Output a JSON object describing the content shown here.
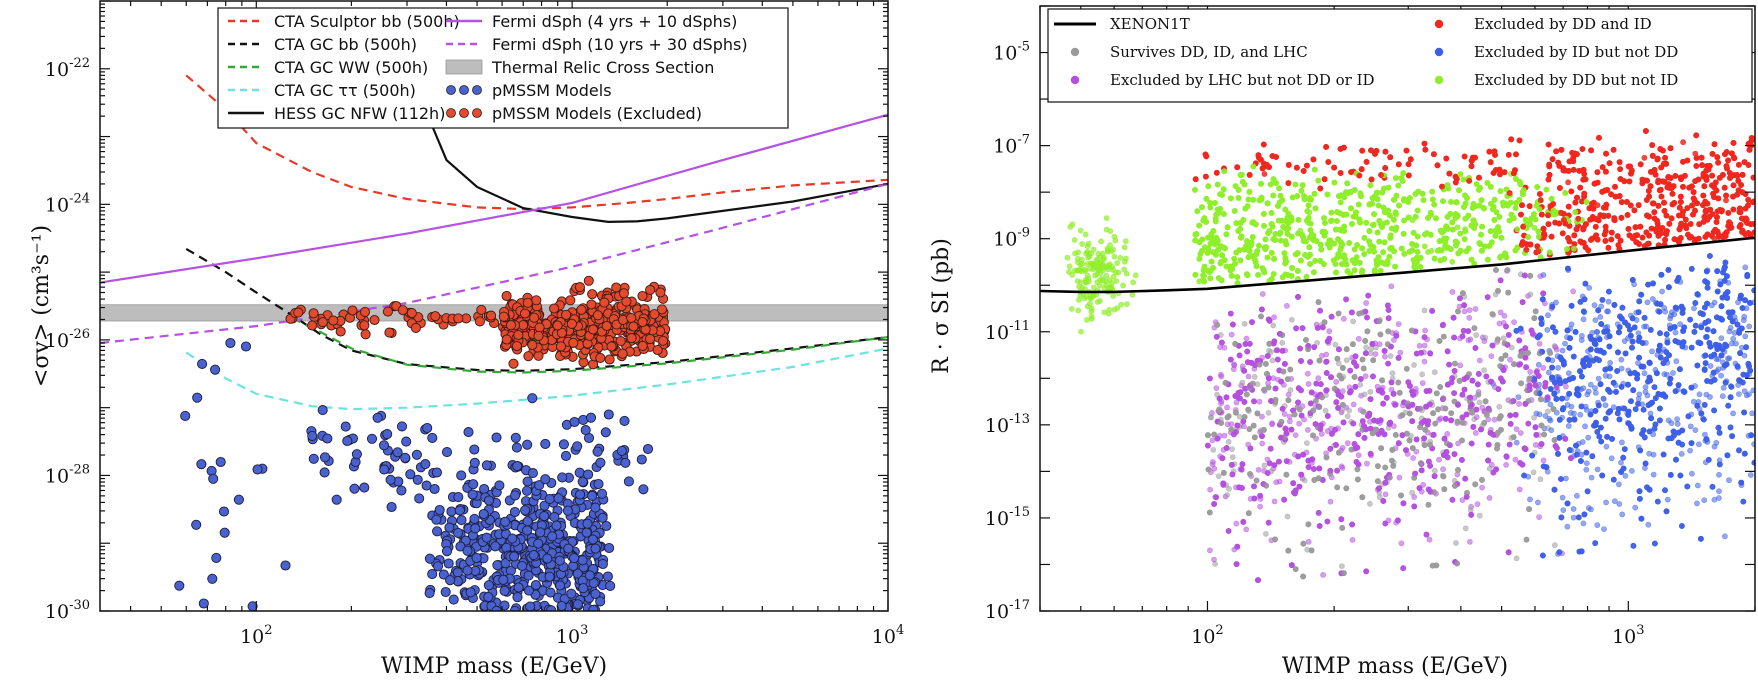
{
  "chart_data": [
    {
      "id": "left",
      "type": "scatter",
      "xscale": "log",
      "yscale": "log",
      "xlim": [
        32,
        10000
      ],
      "ylim": [
        1e-30,
        1e-21
      ],
      "xlabel": "WIMP mass (E/GeV)",
      "ylabel": "<σv> (cm³s⁻¹)",
      "xticks": [
        {
          "v": 100,
          "b": "10",
          "e": "2"
        },
        {
          "v": 1000,
          "b": "10",
          "e": "3"
        },
        {
          "v": 10000,
          "b": "10",
          "e": "4"
        }
      ],
      "yticks": [
        {
          "v": 1e-22,
          "b": "10",
          "e": "-22"
        },
        {
          "v": 1e-24,
          "b": "10",
          "e": "-24"
        },
        {
          "v": 1e-26,
          "b": "10",
          "e": "-26"
        },
        {
          "v": 1e-28,
          "b": "10",
          "e": "-28"
        },
        {
          "v": 1e-30,
          "b": "10",
          "e": "-30"
        }
      ],
      "legend_position": "top-right",
      "band": {
        "name": "Thermal Relic Cross Section",
        "y_range": [
          1.9e-26,
          3.3e-26
        ],
        "color": "#bdbdbd"
      },
      "series": [
        {
          "name": "CTA Sculptor bb (500h)",
          "style": "dashed",
          "color": "#e8382a",
          "x": [
            60,
            80,
            100,
            150,
            200,
            300,
            500,
            700,
            1000,
            1500,
            2000,
            3000,
            5000,
            10000
          ],
          "y": [
            8e-23,
            2.5e-23,
            8e-24,
            3e-24,
            1.8e-24,
            1.2e-24,
            9e-25,
            8.5e-25,
            9e-25,
            1.05e-24,
            1.2e-24,
            1.5e-24,
            1.9e-24,
            2.3e-24
          ]
        },
        {
          "name": "CTA GC bb (500h)",
          "style": "dashed",
          "color": "#111111",
          "x": [
            60,
            80,
            100,
            130,
            160,
            200,
            300,
            500,
            700,
            1000,
            2000,
            5000,
            10000
          ],
          "y": [
            2.2e-25,
            1e-25,
            5e-26,
            2.3e-26,
            1.2e-26,
            7e-27,
            4.4e-27,
            3.6e-27,
            3.5e-27,
            3.7e-27,
            4.7e-27,
            7.5e-27,
            1.1e-26
          ]
        },
        {
          "name": "CTA GC WW (500h)",
          "style": "dashed",
          "color": "#36a83a",
          "x": [
            130,
            160,
            200,
            300,
            500,
            700,
            1000,
            2000,
            5000,
            10000
          ],
          "y": [
            2.1e-26,
            1.3e-26,
            7.5e-27,
            4.3e-27,
            3.4e-27,
            3.3e-27,
            3.5e-27,
            4.5e-27,
            7.2e-27,
            1.1e-26
          ]
        },
        {
          "name": "CTA GC ττ (500h)",
          "style": "dashed",
          "color": "#6ae4de",
          "x": [
            60,
            80,
            100,
            150,
            200,
            300,
            500,
            700,
            1000,
            2000,
            5000,
            10000
          ],
          "y": [
            6.5e-27,
            2.7e-27,
            1.6e-27,
            1.05e-27,
            9.5e-28,
            1e-27,
            1.15e-27,
            1.3e-27,
            1.5e-27,
            2.2e-27,
            4e-27,
            7.5e-27
          ]
        },
        {
          "name": "HESS GC NFW (112h)",
          "style": "solid",
          "color": "#111111",
          "x": [
            350,
            400,
            500,
            700,
            1000,
            1300,
            1600,
            2000,
            3000,
            5000,
            10000
          ],
          "y": [
            2e-23,
            4.5e-24,
            1.8e-24,
            8.8e-25,
            6.5e-25,
            5.5e-25,
            5.6e-25,
            6.2e-25,
            8e-25,
            1.1e-24,
            2e-24
          ]
        },
        {
          "name": "Fermi dSph (4 yrs + 10 dSphs)",
          "style": "solid",
          "color": "#b452e3",
          "x": [
            32,
            100,
            300,
            1000,
            3000,
            10000
          ],
          "y": [
            7e-26,
            1.6e-25,
            3.7e-25,
            1.05e-24,
            4.5e-24,
            2.1e-23
          ]
        },
        {
          "name": "Fermi dSph (10 yrs + 30 dSphs)",
          "style": "dashed",
          "color": "#b452e3",
          "x": [
            32,
            100,
            300,
            1000,
            3000,
            10000
          ],
          "y": [
            9e-27,
            1.6e-26,
            3.5e-26,
            1.2e-25,
            4.5e-25,
            2e-24
          ]
        },
        {
          "name": "pMSSM Models",
          "style": "markers",
          "color": "#4a62cf",
          "edge": "#1d1d3a"
        },
        {
          "name": "pMSSM Models (Excluded)",
          "style": "markers",
          "color": "#e44a2e",
          "edge": "#3a1a12"
        }
      ],
      "legend": {
        "col1": [
          {
            "label": "CTA Sculptor bb (500h)",
            "color": "#e8382a",
            "kind": "dash"
          },
          {
            "label": "CTA GC bb (500h)",
            "color": "#111111",
            "kind": "dash"
          },
          {
            "label": "CTA GC WW (500h)",
            "color": "#36a83a",
            "kind": "dash"
          },
          {
            "label": "CTA GC ττ (500h)",
            "color": "#6ae4de",
            "kind": "dash"
          },
          {
            "label": "HESS GC NFW (112h)",
            "color": "#111111",
            "kind": "solid"
          }
        ],
        "col2": [
          {
            "label": "Fermi dSph (4 yrs + 10 dSphs)",
            "color": "#b452e3",
            "kind": "solid"
          },
          {
            "label": "Fermi dSph (10 yrs + 30 dSphs)",
            "color": "#b452e3",
            "kind": "dash"
          },
          {
            "label": "Thermal Relic Cross Section",
            "color": "#bdbdbd",
            "kind": "box"
          },
          {
            "label": "pMSSM Models",
            "color": "#4a62cf",
            "kind": "dots"
          },
          {
            "label": "pMSSM Models (Excluded)",
            "color": "#e44a2e",
            "kind": "dots"
          }
        ]
      }
    },
    {
      "id": "right",
      "type": "scatter",
      "xscale": "log",
      "yscale": "log",
      "xlim": [
        40,
        2000
      ],
      "ylim": [
        1e-17,
        0.0001
      ],
      "xlabel": "WIMP mass (E/GeV)",
      "ylabel": "R · σ SI (pb)",
      "xticks": [
        {
          "v": 100,
          "b": "10",
          "e": "2"
        },
        {
          "v": 1000,
          "b": "10",
          "e": "3"
        }
      ],
      "yticks": [
        {
          "v": 1e-05,
          "b": "10",
          "e": "-5"
        },
        {
          "v": 1e-07,
          "b": "10",
          "e": "-7"
        },
        {
          "v": 1e-09,
          "b": "10",
          "e": "-9"
        },
        {
          "v": 1e-11,
          "b": "10",
          "e": "-11"
        },
        {
          "v": 1e-13,
          "b": "10",
          "e": "-13"
        },
        {
          "v": 1e-15,
          "b": "10",
          "e": "-15"
        },
        {
          "v": 1e-17,
          "b": "10",
          "e": "-17"
        }
      ],
      "legend_position": "top",
      "series": [
        {
          "name": "XENON1T",
          "style": "solid",
          "color": "#000000",
          "x": [
            40,
            50,
            60,
            80,
            100,
            200,
            500,
            1000,
            2000
          ],
          "y": [
            7.5e-11,
            7.2e-11,
            7.2e-11,
            7.8e-11,
            8.4e-11,
            1.4e-10,
            2.8e-10,
            5.5e-10,
            1.05e-09
          ]
        },
        {
          "name": "Survives DD, ID, and LHC",
          "style": "markers",
          "color": "#9a9a9a"
        },
        {
          "name": "Excluded by LHC but not DD or ID",
          "style": "markers",
          "color": "#b44ee0"
        },
        {
          "name": "Excluded by DD and ID",
          "style": "markers",
          "color": "#f0281e"
        },
        {
          "name": "Excluded by ID but not DD",
          "style": "markers",
          "color": "#3c5ee8"
        },
        {
          "name": "Excluded by DD but not ID",
          "style": "markers",
          "color": "#8eee2a"
        }
      ],
      "legend": {
        "col1": [
          {
            "label": "XENON1T",
            "color": "#000000",
            "kind": "line"
          },
          {
            "label": "Survives DD, ID, and LHC",
            "color": "#9a9a9a",
            "kind": "dot"
          },
          {
            "label": "Excluded by LHC but not DD or ID",
            "color": "#b44ee0",
            "kind": "dot"
          }
        ],
        "col2": [
          {
            "label": "Excluded by DD and ID",
            "color": "#f0281e",
            "kind": "dot"
          },
          {
            "label": "Excluded by ID but not DD",
            "color": "#3c5ee8",
            "kind": "dot"
          },
          {
            "label": "Excluded by DD but not ID",
            "color": "#8eee2a",
            "kind": "dot"
          }
        ]
      }
    }
  ]
}
